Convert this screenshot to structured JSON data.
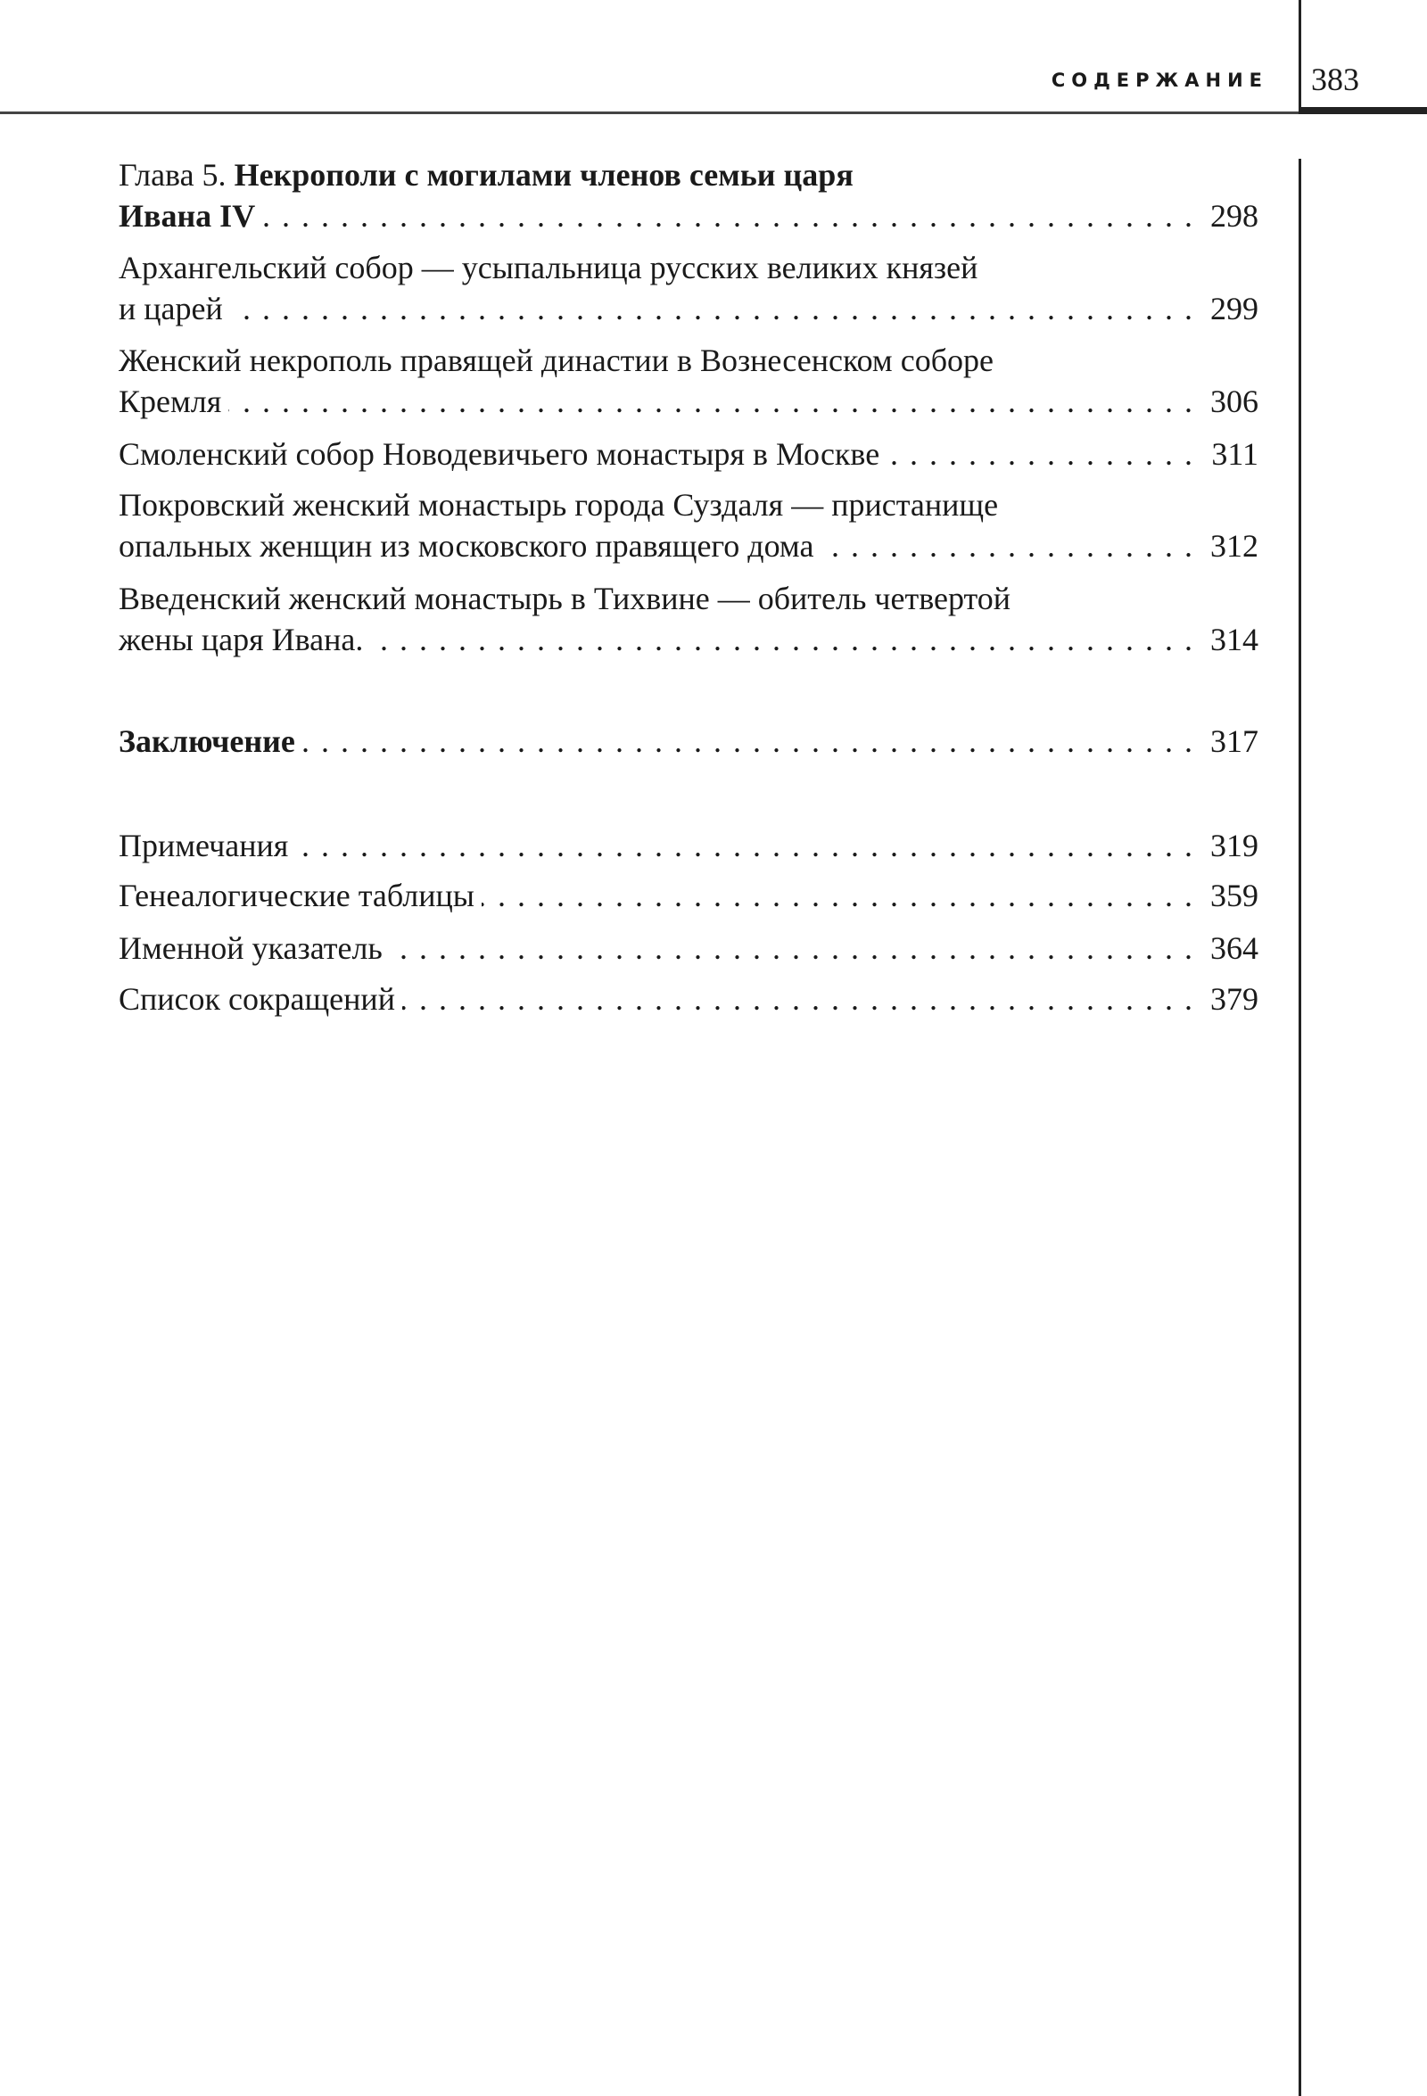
{
  "header": {
    "running_head": "СОДЕРЖАНИЕ",
    "page_number": "383"
  },
  "toc": {
    "chapter5": {
      "prefix": "Глава 5. ",
      "title_line1": "Некрополи с могилами членов семьи царя",
      "title_line2": "Ивана IV",
      "page": "298"
    },
    "entries": [
      {
        "line1": "Архангельский собор — усыпальница русских великих князей",
        "line2": "и царей",
        "page": "299"
      },
      {
        "line1": "Женский некрополь правящей династии в Вознесенском соборе",
        "line2": "Кремля",
        "page": "306"
      },
      {
        "line1": "",
        "line2": "Смоленский собор Новодевичьего монастыря в Москве",
        "page": "311"
      },
      {
        "line1": "Покровский женский монастырь города Суздаля — пристанище",
        "line2": "опальных женщин из московского правящего дома",
        "page": "312"
      },
      {
        "line1": "Введенский женский монастырь в Тихвине — обитель четвертой",
        "line2": "жены царя Ивана.",
        "page": "314"
      }
    ],
    "conclusion": {
      "title": "Заключение",
      "page": "317"
    },
    "appendices": [
      {
        "title": "Примечания",
        "page": "319"
      },
      {
        "title": "Генеалогические таблицы",
        "page": "359"
      },
      {
        "title": "Именной указатель",
        "page": "364"
      },
      {
        "title": "Список сокращений",
        "page": "379"
      }
    ]
  }
}
